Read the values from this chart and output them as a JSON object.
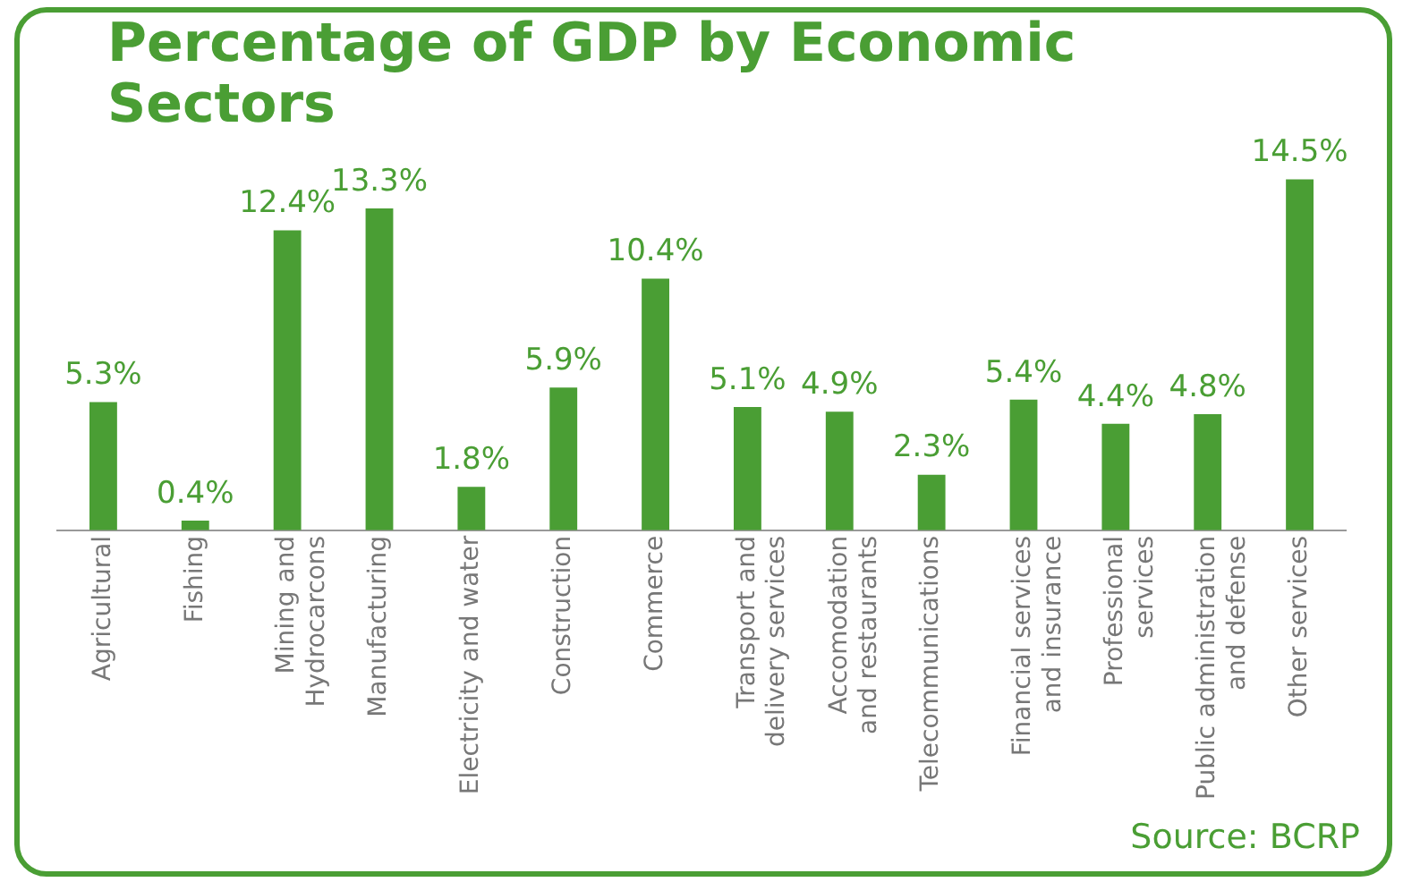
{
  "chart_data": {
    "type": "bar",
    "title": "Percentage of GDP by Economic Sectors",
    "categories": [
      "Agricultural",
      "Fishing",
      "Mining and\nHydrocarcons",
      "Manufacturing",
      "Electricity and water",
      "Construction",
      "Commerce",
      "Transport and\ndelivery services",
      "Accomodation\nand restaurants",
      "Telecommunications",
      "Financial services\nand insurance",
      "Professional\nservices",
      "Public administration\nand defense",
      "Other services"
    ],
    "values": [
      5.3,
      0.4,
      12.4,
      13.3,
      1.8,
      5.9,
      10.4,
      5.1,
      4.9,
      2.3,
      5.4,
      4.4,
      4.8,
      14.5
    ],
    "value_labels": [
      "5.3%",
      "0.4%",
      "12.4%",
      "13.3%",
      "1.8%",
      "5.9%",
      "10.4%",
      "5.1%",
      "4.9%",
      "2.3%",
      "5.4%",
      "4.4%",
      "4.8%",
      "14.5%"
    ],
    "color": "#4a9e34",
    "grid": false,
    "legend": false,
    "annotations": [
      "Source: BCRP"
    ]
  }
}
